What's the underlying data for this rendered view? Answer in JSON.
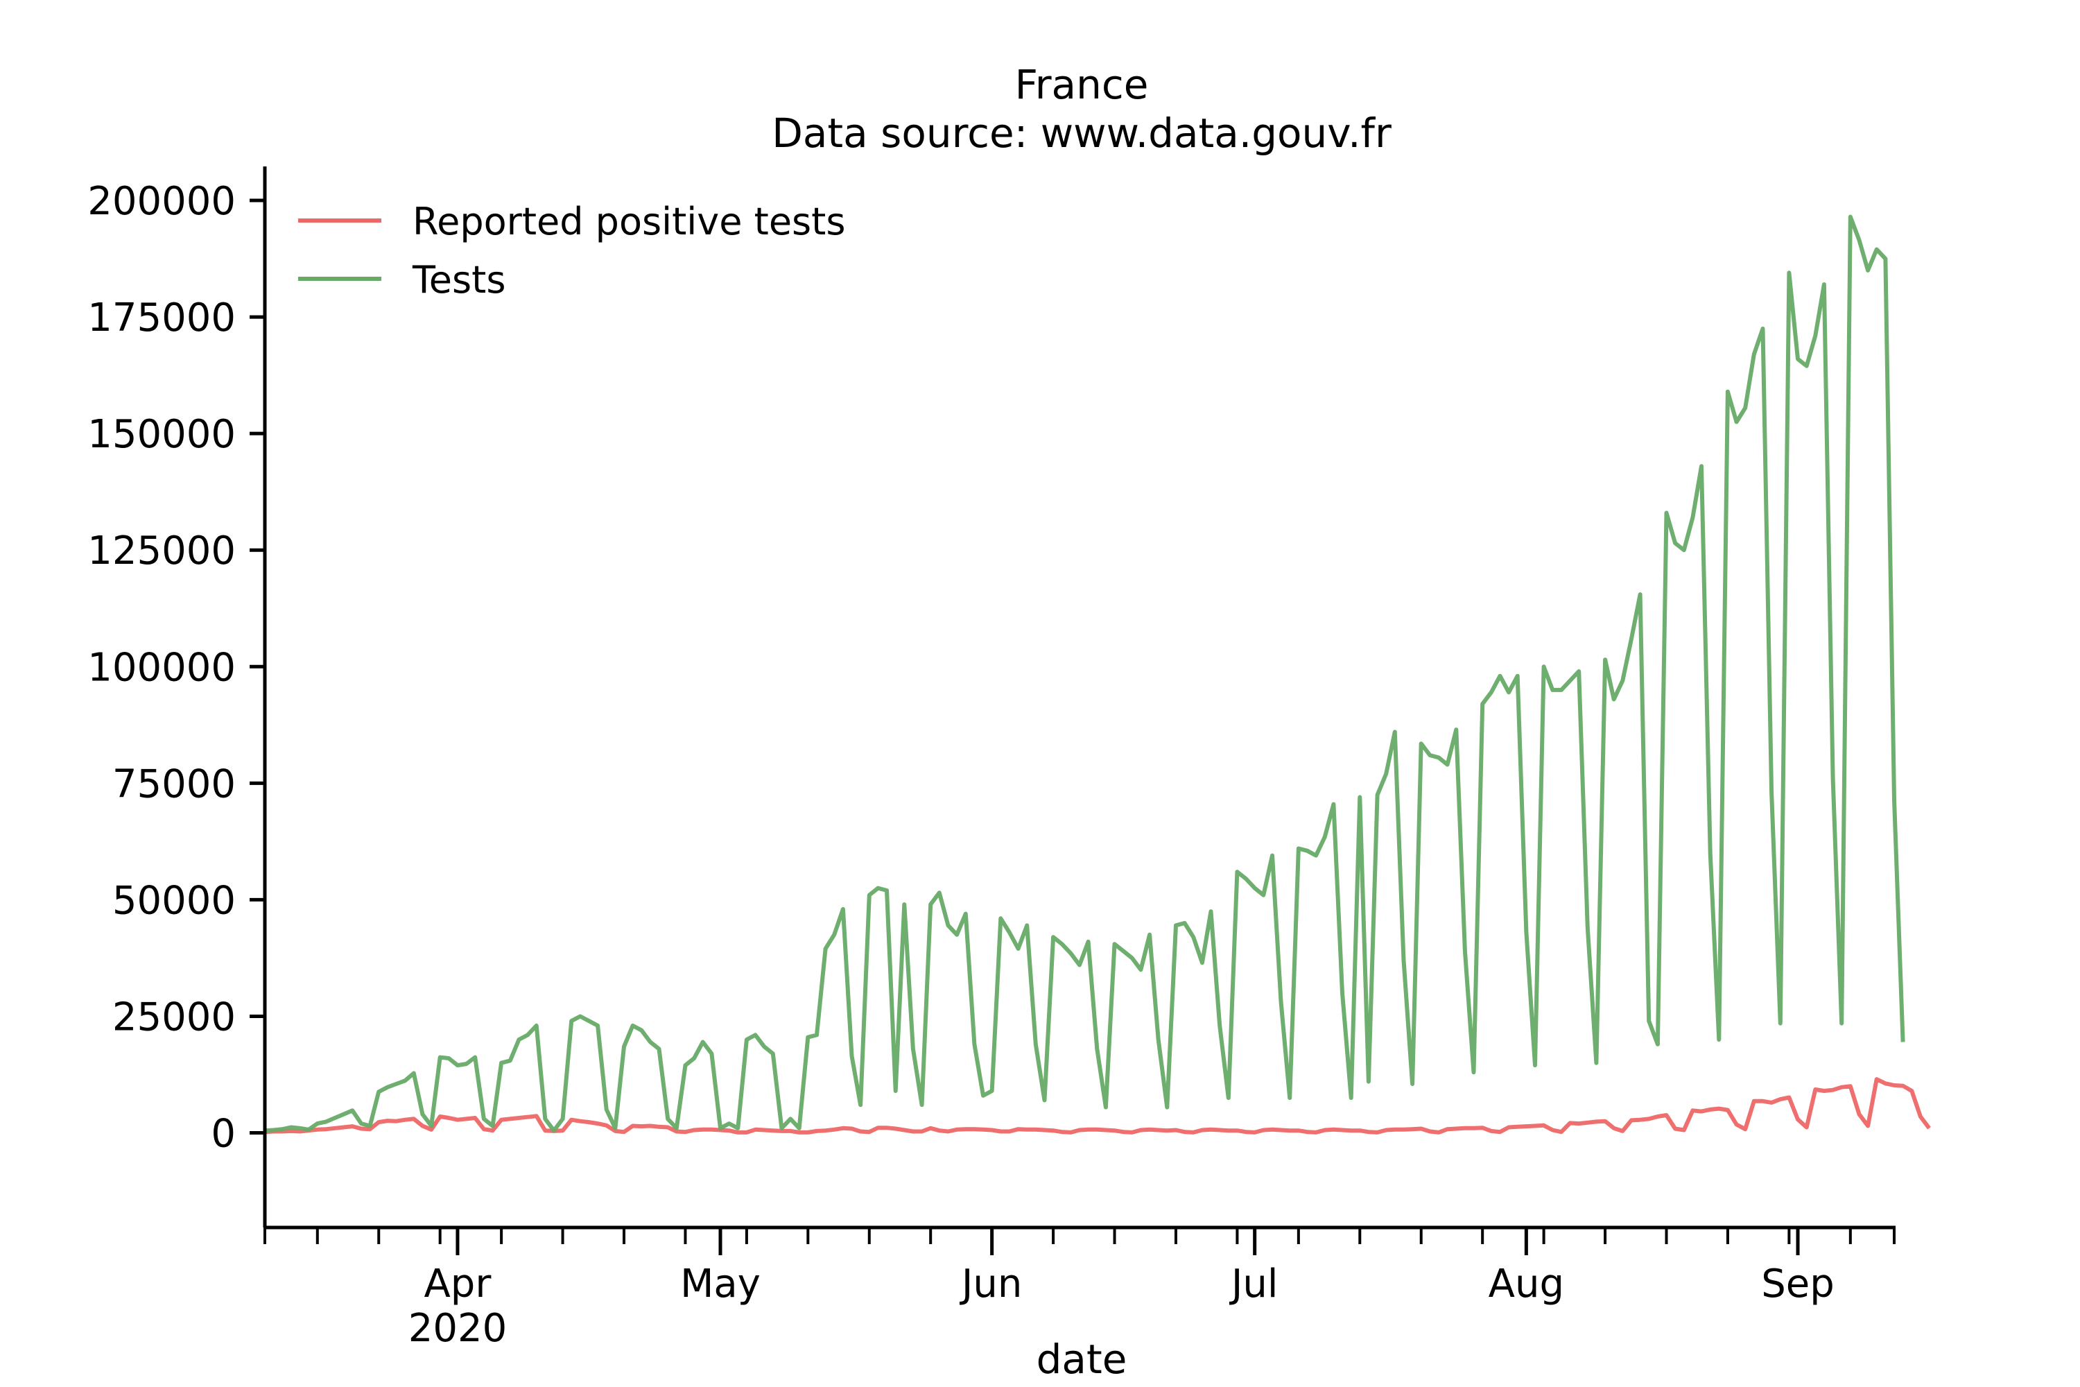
{
  "chart_data": {
    "type": "line",
    "title": "France",
    "subtitle": "Data source: www.data.gouv.fr",
    "xlabel": "date",
    "ylabel": "",
    "x_start": "2020-03-10",
    "xlim": [
      "2020-03-10",
      "2020-09-12"
    ],
    "ylim": [
      -20000,
      207000
    ],
    "yticks": [
      0,
      25000,
      50000,
      75000,
      100000,
      125000,
      150000,
      175000,
      200000
    ],
    "xticks_major": [
      {
        "date": "2020-04-01",
        "label": "Apr",
        "sublabel": "2020"
      },
      {
        "date": "2020-05-01",
        "label": "May",
        "sublabel": ""
      },
      {
        "date": "2020-06-01",
        "label": "Jun",
        "sublabel": ""
      },
      {
        "date": "2020-07-01",
        "label": "Jul",
        "sublabel": ""
      },
      {
        "date": "2020-08-01",
        "label": "Aug",
        "sublabel": ""
      },
      {
        "date": "2020-09-01",
        "label": "Sep",
        "sublabel": ""
      }
    ],
    "xticks_minor": [
      "2020-03-10",
      "2020-03-16",
      "2020-03-23",
      "2020-03-30",
      "2020-04-06",
      "2020-04-13",
      "2020-04-20",
      "2020-04-27",
      "2020-05-04",
      "2020-05-11",
      "2020-05-18",
      "2020-05-25",
      "2020-06-01",
      "2020-06-08",
      "2020-06-15",
      "2020-06-22",
      "2020-06-29",
      "2020-07-06",
      "2020-07-13",
      "2020-07-20",
      "2020-07-27",
      "2020-08-03",
      "2020-08-10",
      "2020-08-17",
      "2020-08-24",
      "2020-08-31",
      "2020-09-07",
      "2020-09-12"
    ],
    "grid": false,
    "legend": "top-left",
    "series": [
      {
        "name": "Reported positive tests",
        "color": "#ee6666",
        "values": [
          200,
          300,
          300,
          400,
          300,
          500,
          700,
          800,
          1000,
          1200,
          1400,
          900,
          800,
          2300,
          2600,
          2500,
          2800,
          3000,
          1500,
          700,
          3500,
          3200,
          2800,
          3000,
          3200,
          800,
          500,
          2800,
          3000,
          3200,
          3400,
          3600,
          500,
          400,
          500,
          2800,
          2500,
          2300,
          2000,
          1600,
          400,
          200,
          1500,
          1400,
          1500,
          1300,
          1200,
          300,
          200,
          600,
          700,
          700,
          600,
          500,
          100,
          100,
          700,
          600,
          500,
          400,
          400,
          100,
          100,
          400,
          500,
          700,
          1000,
          900,
          300,
          200,
          1100,
          1100,
          900,
          600,
          300,
          300,
          1000,
          500,
          300,
          700,
          800,
          800,
          700,
          600,
          300,
          300,
          800,
          700,
          700,
          600,
          500,
          200,
          100,
          600,
          700,
          700,
          600,
          500,
          200,
          100,
          600,
          700,
          600,
          500,
          600,
          200,
          100,
          600,
          700,
          600,
          500,
          500,
          200,
          100,
          600,
          700,
          600,
          500,
          500,
          200,
          100,
          600,
          700,
          600,
          500,
          500,
          200,
          100,
          600,
          700,
          700,
          800,
          900,
          300,
          100,
          800,
          900,
          1000,
          1000,
          1100,
          400,
          200,
          1200,
          1300,
          1400,
          1500,
          1600,
          600,
          200,
          2100,
          2000,
          2200,
          2400,
          2500,
          1000,
          400,
          2700,
          2800,
          3000,
          3500,
          3800,
          900,
          600,
          4800,
          4600,
          5000,
          5200,
          4900,
          1800,
          800,
          6800,
          6800,
          6500,
          7200,
          7600,
          2900,
          1200,
          9300,
          9000,
          9200,
          9800,
          10000,
          4000,
          1500,
          11500,
          10600,
          10200,
          10100,
          9000,
          3500,
          1000
        ]
      },
      {
        "name": "Tests",
        "color": "#66aa66",
        "values": [
          500,
          600,
          800,
          1200,
          1000,
          700,
          2000,
          2400,
          3200,
          4000,
          4800,
          2000,
          1500,
          8800,
          9800,
          10500,
          11200,
          12800,
          4000,
          1500,
          16200,
          16000,
          14500,
          14800,
          16200,
          3000,
          1500,
          15000,
          15500,
          20000,
          21000,
          23000,
          3000,
          500,
          3000,
          24000,
          25000,
          24000,
          23000,
          5000,
          1000,
          18500,
          23000,
          22000,
          19500,
          18000,
          3000,
          1000,
          14500,
          16000,
          19500,
          17000,
          1000,
          2000,
          1000,
          20000,
          21000,
          18500,
          17000,
          1000,
          3000,
          1000,
          20500,
          21000,
          39500,
          42500,
          48000,
          16500,
          6000,
          51000,
          52500,
          52000,
          9000,
          49000,
          18000,
          6000,
          49000,
          51500,
          44500,
          42500,
          47000,
          19000,
          8000,
          9000,
          46000,
          43000,
          39500,
          44500,
          19000,
          7000,
          42000,
          40500,
          38500,
          36000,
          41000,
          18000,
          5500,
          40500,
          39000,
          37500,
          35000,
          42500,
          20000,
          5500,
          44500,
          45000,
          42000,
          36500,
          47500,
          23000,
          7500,
          56000,
          54500,
          52500,
          51000,
          59500,
          28000,
          7500,
          61000,
          60500,
          59500,
          63500,
          70500,
          30000,
          7500,
          72000,
          11000,
          72500,
          77000,
          86000,
          37000,
          10500,
          83500,
          81000,
          80500,
          79000,
          86500,
          39000,
          13000,
          92000,
          94500,
          98000,
          94500,
          98000,
          43000,
          14500,
          100000,
          95000,
          95000,
          97000,
          99000,
          44000,
          15000,
          101500,
          93000,
          97000,
          106000,
          115500,
          24000,
          19000,
          133000,
          126500,
          125000,
          132000,
          143000,
          60000,
          20000,
          159000,
          152500,
          155500,
          167000,
          172500,
          73000,
          23500,
          184500,
          166000,
          164500,
          171000,
          182000,
          76000,
          23500,
          196500,
          191500,
          185000,
          189500,
          187500,
          71500,
          19500
        ]
      }
    ]
  }
}
